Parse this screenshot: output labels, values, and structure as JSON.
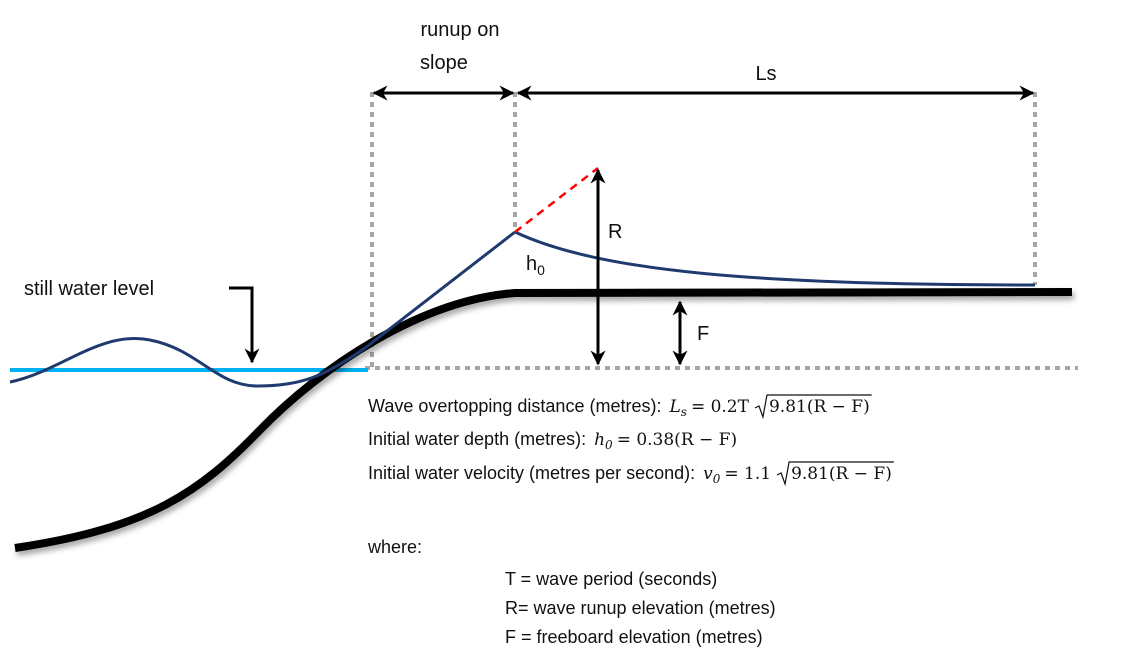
{
  "labels": {
    "runup_line1": "runup on",
    "runup_line2": "slope",
    "ls": "Ls",
    "r": "R",
    "h0": "h",
    "h0_subscript": "0",
    "f": "F",
    "still_water_level": "still water level"
  },
  "formulas": [
    {
      "label": "Wave overtopping distance (metres):",
      "lhs": "L",
      "lhs_subscript": "s",
      "rhs": "= 0.2T",
      "radicand": "9.81(R − F)"
    },
    {
      "label": "Initial water depth (metres):",
      "lhs": "h",
      "lhs_subscript": "0",
      "rhs": "= 0.38(R − F)"
    },
    {
      "label": "Initial water velocity (metres per second):",
      "lhs": "v",
      "lhs_subscript": "0",
      "rhs": "= 1.1",
      "radicand": "9.81(R − F)"
    }
  ],
  "where": "where:",
  "definitions": [
    "T = wave period (seconds)",
    "R= wave runup elevation (metres)",
    "F = freeboard elevation (metres)"
  ]
}
